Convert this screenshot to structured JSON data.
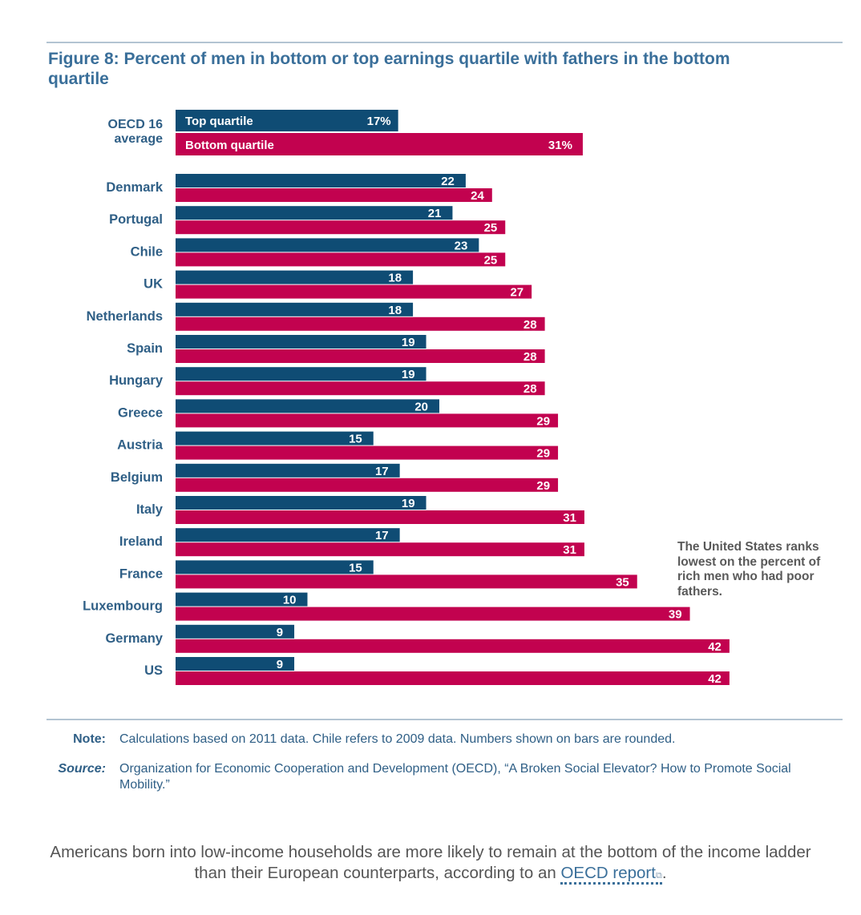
{
  "figure": {
    "title": "Figure 8: Percent of men in bottom or top earnings quartile with fathers in the bottom quartile"
  },
  "average": {
    "label_line1": "OECD 16",
    "label_line2": "average",
    "top_label": "Top quartile",
    "bottom_label": "Bottom quartile",
    "top_value": "17%",
    "bottom_value": "31%"
  },
  "annotation": "The United States ranks lowest on the percent of rich men who had poor fathers.",
  "note": {
    "label": "Note:",
    "text": "Calculations based on 2011 data. Chile refers to 2009 data. Numbers shown on bars are rounded."
  },
  "source": {
    "label": "Source:",
    "text": "Organization for Economic Cooperation and Development (OECD), “A Broken Social Elevator? How to Promote Social Mobility.”"
  },
  "caption": {
    "text_before": "Americans born into low-income households are more likely to remain at the bottom of the income ladder than their European counterparts, according to an ",
    "link_text": "OECD report",
    "text_after": "."
  },
  "colors": {
    "top": "#0f4c74",
    "bottom": "#c2024f",
    "label": "#2f5f86",
    "us_label": "#222222"
  },
  "chart_data": {
    "type": "bar",
    "orientation": "horizontal",
    "categories": [
      "Denmark",
      "Portugal",
      "Chile",
      "UK",
      "Netherlands",
      "Spain",
      "Hungary",
      "Greece",
      "Austria",
      "Belgium",
      "Italy",
      "Ireland",
      "France",
      "Luxembourg",
      "Germany",
      "US"
    ],
    "series": [
      {
        "name": "Top quartile",
        "values": [
          22,
          21,
          23,
          18,
          18,
          19,
          19,
          20,
          15,
          17,
          19,
          17,
          15,
          10,
          9,
          9
        ]
      },
      {
        "name": "Bottom quartile",
        "values": [
          24,
          25,
          25,
          27,
          28,
          28,
          28,
          29,
          29,
          29,
          31,
          31,
          35,
          39,
          42,
          42
        ]
      }
    ],
    "average": {
      "label": "OECD 16 average",
      "top": 17,
      "bottom": 31
    },
    "xlim": [
      0,
      42
    ],
    "grid": false,
    "legend": "inside average bars"
  }
}
